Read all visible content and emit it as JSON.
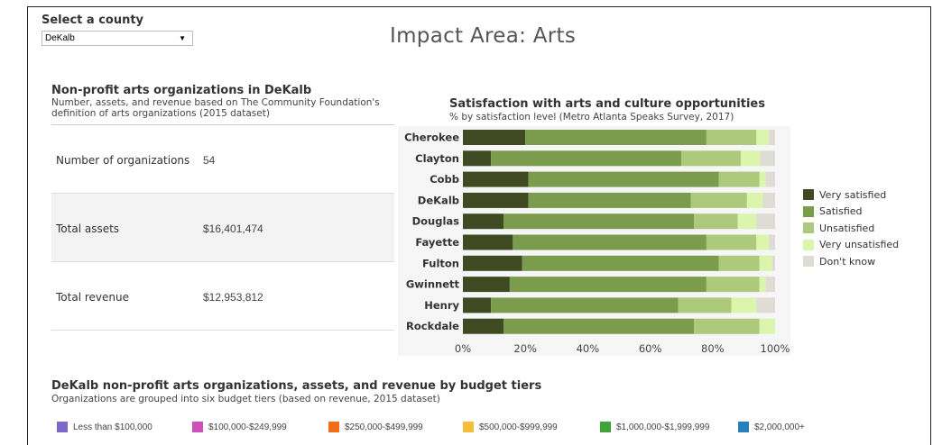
{
  "county": {
    "label": "Select a county",
    "selected": "DeKalb"
  },
  "page_title": "Impact Area: Arts",
  "nonprofit": {
    "title": "Non-profit arts organizations in DeKalb",
    "subtitle": "Number, assets, and revenue based on The Community Foundation's definition of arts organizations (2015 dataset)",
    "rows": [
      {
        "label": "Number of organizations",
        "value": "54"
      },
      {
        "label": "Total assets",
        "value": "$16,401,474"
      },
      {
        "label": "Total revenue",
        "value": "$12,953,812"
      }
    ]
  },
  "chart_data": {
    "type": "bar",
    "orientation": "horizontal",
    "stacked": true,
    "title": "Satisfaction with arts and culture opportunities",
    "subtitle": "% by satisfaction level (Metro Atlanta Speaks Survey, 2017)",
    "categories": [
      "Cherokee",
      "Clayton",
      "Cobb",
      "DeKalb",
      "Douglas",
      "Fayette",
      "Fulton",
      "Gwinnett",
      "Henry",
      "Rockdale"
    ],
    "series": [
      {
        "name": "Very satisfied",
        "color": "#3f4a22",
        "values": [
          20,
          9,
          21,
          21,
          13,
          16,
          19,
          15,
          9,
          13
        ]
      },
      {
        "name": "Satisfied",
        "color": "#7b9b4d",
        "values": [
          58,
          61,
          61,
          52,
          61,
          62,
          63,
          63,
          60,
          61
        ]
      },
      {
        "name": "Unsatisfied",
        "color": "#adc97c",
        "values": [
          16,
          19,
          13,
          18,
          14,
          16,
          13,
          17,
          17,
          21
        ]
      },
      {
        "name": "Very unsatisfied",
        "color": "#dbf5ac",
        "values": [
          4,
          6,
          2,
          5,
          6,
          4,
          4,
          2,
          8,
          5
        ]
      },
      {
        "name": "Don't know",
        "color": "#dfddd3",
        "values": [
          2,
          5,
          3,
          4,
          6,
          2,
          1,
          3,
          6,
          0
        ]
      }
    ],
    "x_ticks": [
      "0%",
      "20%",
      "40%",
      "60%",
      "80%",
      "100%"
    ],
    "xlim": [
      0,
      100
    ],
    "legend_position": "right",
    "grid": false
  },
  "tiers": {
    "title": "DeKalb non-profit arts organizations, assets, and revenue by budget tiers",
    "subtitle": "Organizations are grouped into six budget tiers (based on revenue, 2015 dataset)",
    "items": [
      {
        "label": "Less than $100,000",
        "color": "#7b68c8"
      },
      {
        "label": "$100,000-$249,999",
        "color": "#cc4fba"
      },
      {
        "label": "$250,000-$499,999",
        "color": "#f26c1c"
      },
      {
        "label": "$500,000-$999,999",
        "color": "#f4bd3b"
      },
      {
        "label": "$1,000,000-$1,999,999",
        "color": "#3fa33a"
      },
      {
        "label": "$2,000,000+",
        "color": "#2980b9"
      }
    ]
  }
}
